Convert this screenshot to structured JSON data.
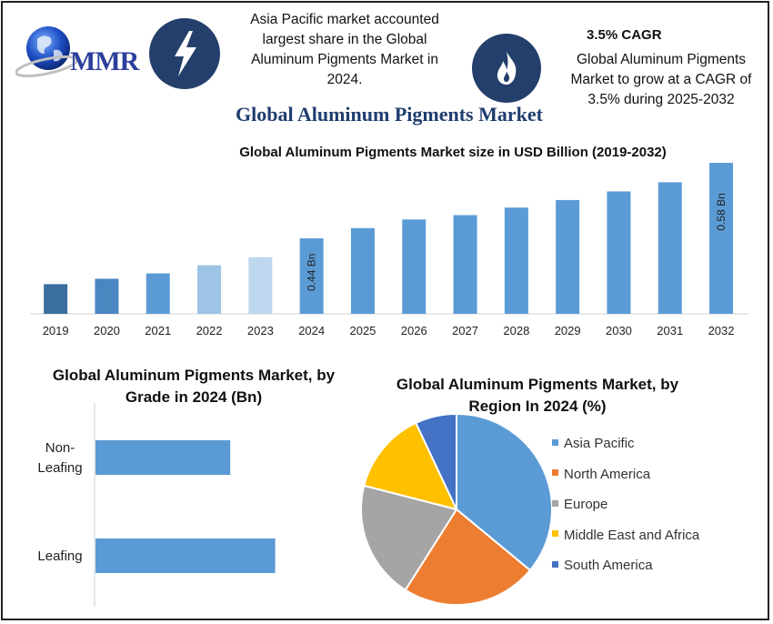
{
  "logo": {
    "text": "MMR"
  },
  "header": {
    "headline_left": "Asia Pacific market accounted largest share in the Global Aluminum Pigments Market in 2024.",
    "cagr_title": "3.5% CAGR",
    "cagr_text": "Global Aluminum Pigments Market to grow at a CAGR of 3.5% during 2025-2032"
  },
  "main_title": "Global Aluminum Pigments Market",
  "colors": {
    "bar_primary": "#5b9bd5",
    "pie_asia_pacific": "#5b9bd5",
    "pie_north_america": "#ed7d31",
    "pie_europe": "#a5a5a5",
    "pie_mea": "#ffc000",
    "pie_south_america": "#4472c4"
  },
  "chart_data": [
    {
      "type": "bar",
      "title": "Global Aluminum Pigments Market size in USD Billion (2019-2032)",
      "categories": [
        "2019",
        "2020",
        "2021",
        "2022",
        "2023",
        "2024",
        "2025",
        "2026",
        "2027",
        "2028",
        "2029",
        "2030",
        "2031",
        "2032"
      ],
      "values": [
        0.355,
        0.365,
        0.375,
        0.39,
        0.405,
        0.44,
        0.459,
        0.475,
        0.483,
        0.497,
        0.511,
        0.527,
        0.544,
        0.58
      ],
      "bar_colors": [
        "#3a6f9e",
        "#4a86c0",
        "#5b9bd5",
        "#9dc3e6",
        "#bdd7ee",
        "#5b9bd5",
        "#5b9bd5",
        "#5b9bd5",
        "#5b9bd5",
        "#5b9bd5",
        "#5b9bd5",
        "#5b9bd5",
        "#5b9bd5",
        "#5b9bd5"
      ],
      "data_labels": {
        "2024": "0.44 Bn",
        "2032": "0.58 Bn"
      },
      "ylim": [
        0.3,
        0.58
      ],
      "grid": false
    },
    {
      "type": "bar",
      "orientation": "horizontal",
      "title": "Global Aluminum Pigments Market, by Grade in 2024 (Bn)",
      "categories": [
        "Non-Leafing",
        "Leafing"
      ],
      "category_lines": [
        [
          "Non-",
          "Leafing"
        ],
        [
          "Leafing"
        ]
      ],
      "values": [
        0.18,
        0.24
      ],
      "xlim": [
        0,
        0.3
      ],
      "color": "#5b9bd5"
    },
    {
      "type": "pie",
      "title": "Global Aluminum Pigments Market, by Region In 2024 (%)",
      "labels": [
        "Asia Pacific",
        "North America",
        "Europe",
        "Middle East and Africa",
        "South America"
      ],
      "values": [
        36,
        23,
        20,
        14,
        7
      ],
      "colors": [
        "#5b9bd5",
        "#ed7d31",
        "#a5a5a5",
        "#ffc000",
        "#4472c4"
      ],
      "legend": "right"
    }
  ]
}
